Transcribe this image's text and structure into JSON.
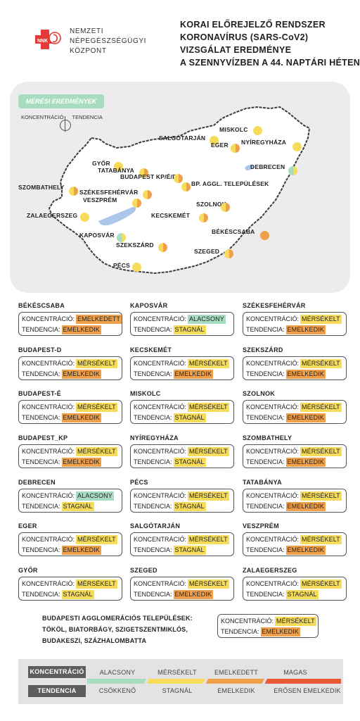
{
  "colors": {
    "alacsony": "#a8dcc0",
    "merseket": "#f6dc5a",
    "emelkedett": "#f0a04a",
    "magas": "#e85a33",
    "csokkeno": "#a8dcc0",
    "stagnal": "#f6dc5a",
    "emelkedik": "#f0a04a",
    "erosen_emelkedik": "#e85a33",
    "map_panel_bg": "#ececec",
    "lake": "#aac6ea"
  },
  "header": {
    "org_lines": [
      "NEMZETI",
      "NÉPEGÉSZSÉGÜGYI",
      "KÖZPONT"
    ],
    "logo_text": "NNK",
    "title_lines": [
      "KORAI ELŐREJELZŐ RENDSZER",
      "KORONAVÍRUS (SARS-CoV2)",
      "VIZSGÁLAT EREDMÉNYE",
      "A SZENNYVÍZBEN A 44. NAPTÁRI HÉTEN"
    ]
  },
  "map": {
    "section_label": "MÉRÉSI EREDMÉNYEK",
    "legend_koncentracio": "KONCENTRÁCIÓ",
    "legend_tendencia": "TENDENCIA",
    "cities": [
      {
        "name": "MISKOLC",
        "konc": "merseket",
        "tend": "stagnal"
      },
      {
        "name": "SALGÓTARJÁN",
        "konc": "merseket",
        "tend": "stagnal"
      },
      {
        "name": "EGER",
        "konc": "merseket",
        "tend": "emelkedik"
      },
      {
        "name": "NYÍREGYHÁZA",
        "konc": "merseket",
        "tend": "stagnal"
      },
      {
        "name": "GYŐR",
        "konc": "merseket",
        "tend": "stagnal"
      },
      {
        "name": "TATABÁNYA",
        "konc": "merseket",
        "tend": "emelkedik"
      },
      {
        "name": "DEBRECEN",
        "konc": "alacsony",
        "tend": "stagnal"
      },
      {
        "name": "BUDAPEST KP/É/D",
        "konc": "merseket",
        "tend": "emelkedik"
      },
      {
        "name": "BP. AGGL. TELEPÜLÉSEK",
        "konc": "merseket",
        "tend": "emelkedik"
      },
      {
        "name": "SZOMBATHELY",
        "konc": "merseket",
        "tend": "emelkedik"
      },
      {
        "name": "SZÉKESFEHÉRVÁR",
        "konc": "merseket",
        "tend": "emelkedik"
      },
      {
        "name": "VESZPRÉM",
        "konc": "merseket",
        "tend": "emelkedik"
      },
      {
        "name": "SZOLNOK",
        "konc": "merseket",
        "tend": "emelkedik"
      },
      {
        "name": "ZALAEGERSZEG",
        "konc": "merseket",
        "tend": "stagnal"
      },
      {
        "name": "KECSKEMÉT",
        "konc": "merseket",
        "tend": "emelkedik"
      },
      {
        "name": "BÉKÉSCSABA",
        "konc": "emelkedett",
        "tend": "emelkedik"
      },
      {
        "name": "KAPOSVÁR",
        "konc": "alacsony",
        "tend": "stagnal"
      },
      {
        "name": "SZEKSZÁRD",
        "konc": "merseket",
        "tend": "emelkedik"
      },
      {
        "name": "SZEGED",
        "konc": "merseket",
        "tend": "emelkedik"
      },
      {
        "name": "PÉCS",
        "konc": "merseket",
        "tend": "stagnal"
      }
    ]
  },
  "labels": {
    "koncentracio": "KONCENTRÁCIÓ:",
    "tendencia": "TENDENCIA:"
  },
  "values": {
    "alacsony": "ALACSONY",
    "merseket": "MÉRSÉKELT",
    "emelkedett": "EMELKEDETT",
    "emelkedik": "EMELKEDIK",
    "stagnal": "STAGNÁL"
  },
  "cards": [
    {
      "name": "BÉKÉSCSABA",
      "konc": "emelkedett",
      "tend": "emelkedik"
    },
    {
      "name": "KAPOSVÁR",
      "konc": "alacsony",
      "tend": "stagnal"
    },
    {
      "name": "SZÉKESFEHÉRVÁR",
      "konc": "merseket",
      "tend": "emelkedik"
    },
    {
      "name": "BUDAPEST-D",
      "konc": "merseket",
      "tend": "emelkedik"
    },
    {
      "name": "KECSKEMÉT",
      "konc": "merseket",
      "tend": "emelkedik"
    },
    {
      "name": "SZEKSZÁRD",
      "konc": "merseket",
      "tend": "emelkedik"
    },
    {
      "name": "BUDAPEST-É",
      "konc": "merseket",
      "tend": "emelkedik"
    },
    {
      "name": "MISKOLC",
      "konc": "merseket",
      "tend": "stagnal"
    },
    {
      "name": "SZOLNOK",
      "konc": "merseket",
      "tend": "emelkedik"
    },
    {
      "name": "BUDAPEST_KP",
      "konc": "merseket",
      "tend": "emelkedik"
    },
    {
      "name": "NYÍREGYHÁZA",
      "konc": "merseket",
      "tend": "stagnal"
    },
    {
      "name": "SZOMBATHELY",
      "konc": "merseket",
      "tend": "emelkedik"
    },
    {
      "name": "DEBRECEN",
      "konc": "alacsony",
      "tend": "stagnal"
    },
    {
      "name": "PÉCS",
      "konc": "merseket",
      "tend": "stagnal"
    },
    {
      "name": "TATABÁNYA",
      "konc": "merseket",
      "tend": "emelkedik"
    },
    {
      "name": "EGER",
      "konc": "merseket",
      "tend": "emelkedik"
    },
    {
      "name": "SALGÓTARJÁN",
      "konc": "merseket",
      "tend": "stagnal"
    },
    {
      "name": "VESZPRÉM",
      "konc": "merseket",
      "tend": "emelkedik"
    },
    {
      "name": "GYŐR",
      "konc": "merseket",
      "tend": "stagnal"
    },
    {
      "name": "SZEGED",
      "konc": "merseket",
      "tend": "emelkedik"
    },
    {
      "name": "ZALAEGERSZEG",
      "konc": "merseket",
      "tend": "stagnal"
    }
  ],
  "agglomeration": {
    "lines": [
      "BUDAPESTI AGGLOMERÁCIÓS TELEPÜLÉSEK:",
      "TÖKÖL, BIATORBÁGY, SZIGETSZENTMIKLÓS,",
      "BUDAKESZI, SZÁZHALOMBATTA"
    ],
    "konc": "merseket",
    "tend": "emelkedik"
  },
  "legend": {
    "konc_label": "KONCENTRÁCIÓ",
    "tend_label": "TENDENCIA",
    "konc_items": [
      "ALACSONY",
      "MÉRSÉKELT",
      "EMELKEDETT",
      "MAGAS"
    ],
    "tend_items": [
      "CSÖKKENŐ",
      "STAGNÁL",
      "EMELKEDIK",
      "ERŐSEN EMELKEDIK"
    ]
  }
}
